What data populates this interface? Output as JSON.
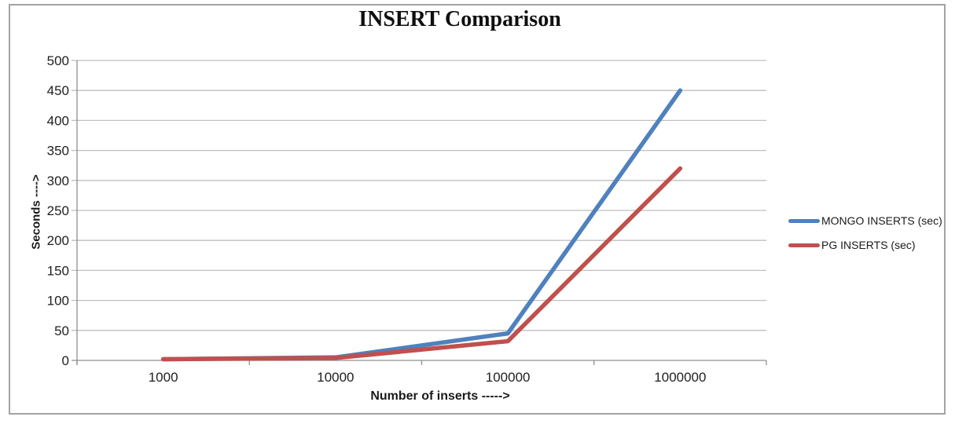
{
  "chart_data": {
    "type": "line",
    "title": "INSERT Comparison",
    "xlabel": "Number of inserts ----->",
    "ylabel": "Seconds ---->",
    "categories": [
      "1000",
      "10000",
      "100000",
      "1000000"
    ],
    "series": [
      {
        "name": "MONGO INSERTS (sec)",
        "color": "#4F81BD",
        "values": [
          2,
          5,
          45,
          450
        ]
      },
      {
        "name": "PG INSERTS (sec)",
        "color": "#C0504D",
        "values": [
          2,
          4,
          32,
          320
        ]
      }
    ],
    "ylim": [
      0,
      500
    ],
    "ytick_step": 50,
    "yticks": [
      "0",
      "50",
      "100",
      "150",
      "200",
      "250",
      "300",
      "350",
      "400",
      "450",
      "500"
    ],
    "grid": true,
    "legend_position": "right"
  },
  "colors": {
    "background": "#ffffff",
    "frame_border": "#a3a3a3",
    "gridline": "#bfbfbf",
    "axis": "#8f8f8f",
    "text": "#1f1f1f",
    "mongo_series": "#4F81BD",
    "pg_series": "#C0504D"
  }
}
